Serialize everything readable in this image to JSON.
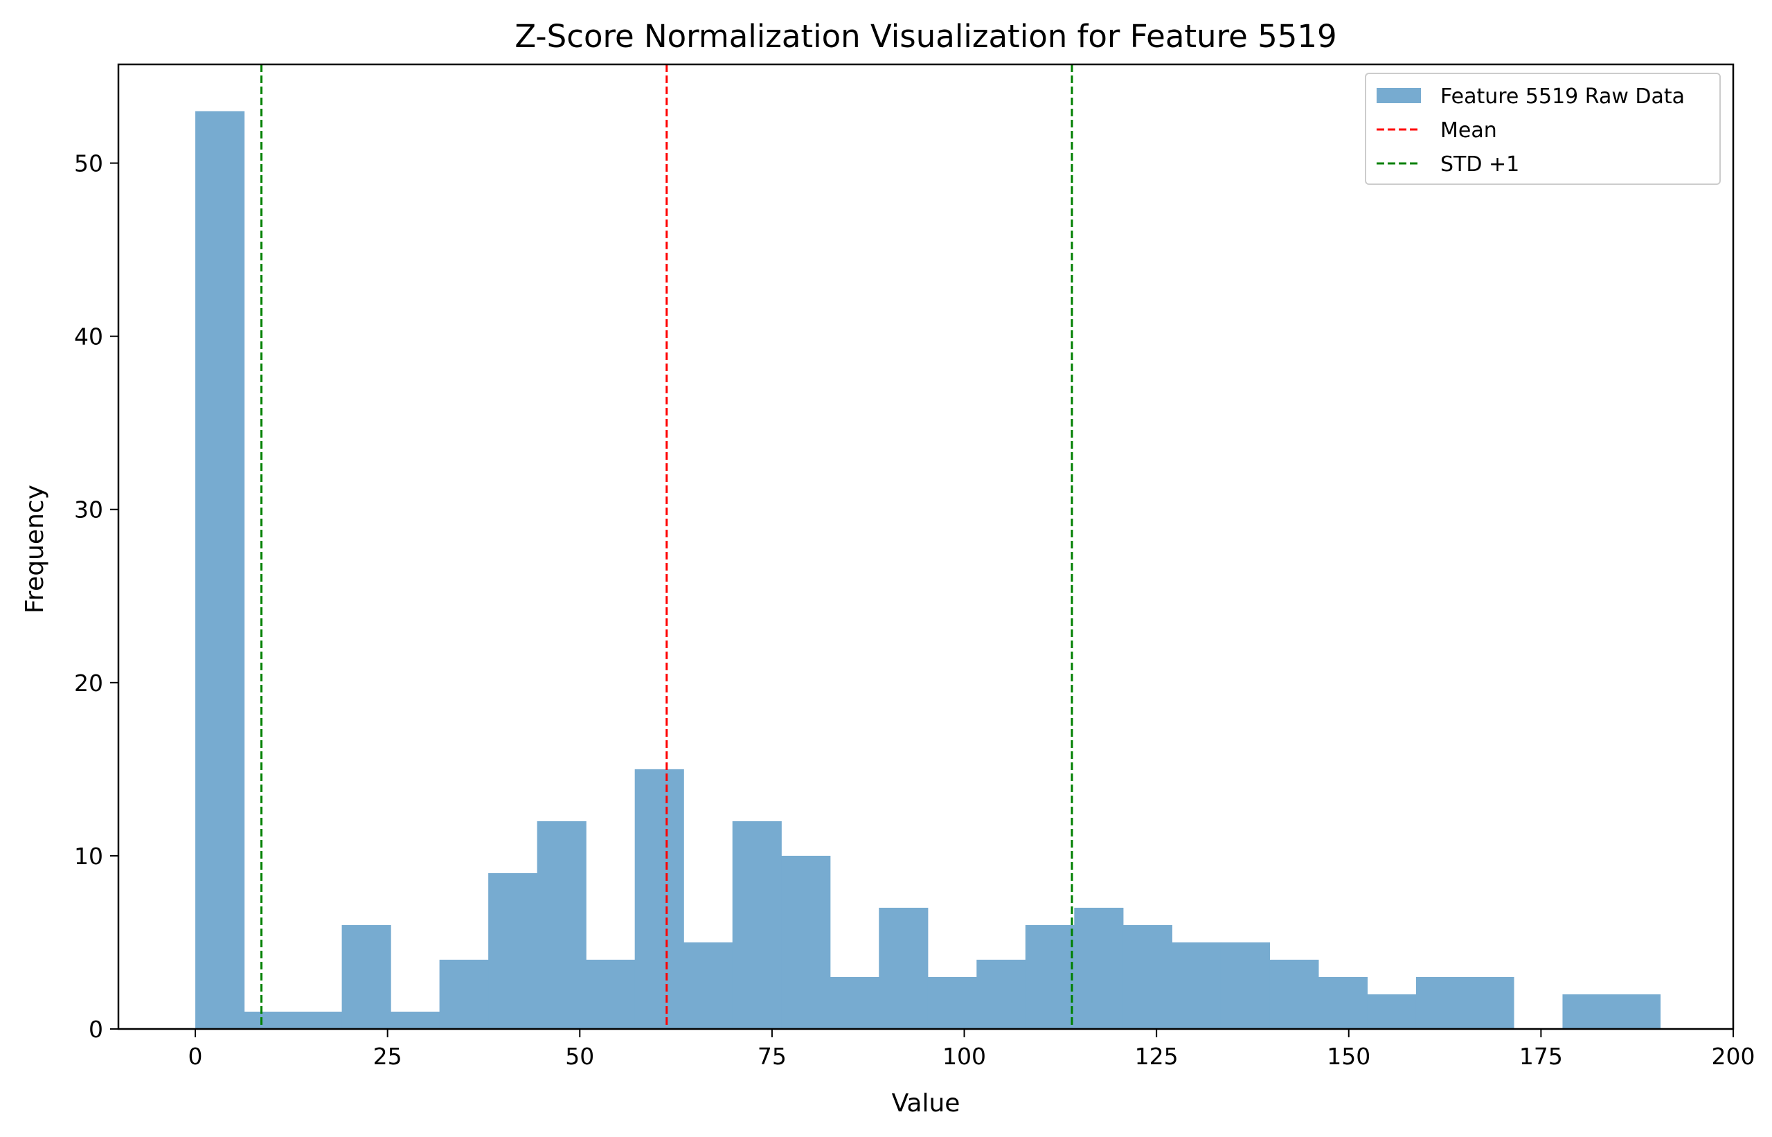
{
  "chart_data": {
    "type": "histogram",
    "title": "Z-Score Normalization Visualization for Feature 5519",
    "xlabel": "Value",
    "ylabel": "Frequency",
    "xlim": [
      -10,
      200
    ],
    "ylim": [
      0,
      55.7
    ],
    "xticks": [
      0,
      25,
      50,
      75,
      100,
      125,
      150,
      175,
      200
    ],
    "yticks": [
      0,
      10,
      20,
      30,
      40,
      50
    ],
    "bin_start": 0,
    "bin_width": 6.35,
    "counts": [
      53,
      1,
      1,
      6,
      1,
      4,
      9,
      12,
      4,
      15,
      5,
      12,
      10,
      3,
      7,
      3,
      4,
      6,
      7,
      6,
      5,
      5,
      4,
      3,
      2,
      3,
      3,
      0,
      2,
      2
    ],
    "bar_color": "#77abd0",
    "mean": 61.3,
    "std_plus_1": 114.0,
    "std_minus_1": 8.6,
    "mean_color": "#ff0000",
    "std_color": "#008000",
    "legend": {
      "position": "top-right",
      "entries": [
        {
          "label": "Feature 5519 Raw Data",
          "kind": "bar"
        },
        {
          "label": "Mean",
          "kind": "mean-line"
        },
        {
          "label": "STD +1",
          "kind": "std-line"
        }
      ]
    },
    "grid": false
  }
}
